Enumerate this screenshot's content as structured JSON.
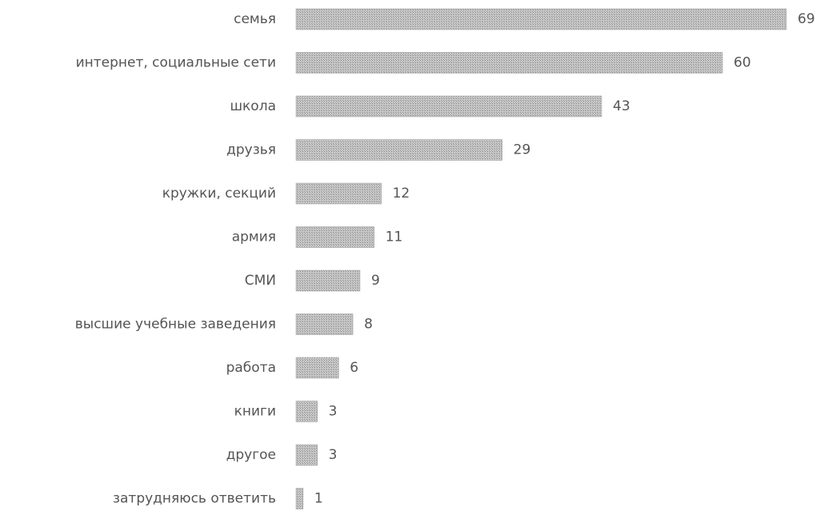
{
  "chart_data": {
    "type": "bar",
    "orientation": "horizontal",
    "categories": [
      "семья",
      "интернет, социальные сети",
      "школа",
      "друзья",
      "кружки, секций",
      "армия",
      "СМИ",
      "высшие учебные заведения",
      "работа",
      "книги",
      "другое",
      "затрудняюсь ответить"
    ],
    "values": [
      69,
      60,
      43,
      29,
      12,
      11,
      9,
      8,
      6,
      3,
      3,
      1
    ],
    "color": "#b4b4b4"
  }
}
